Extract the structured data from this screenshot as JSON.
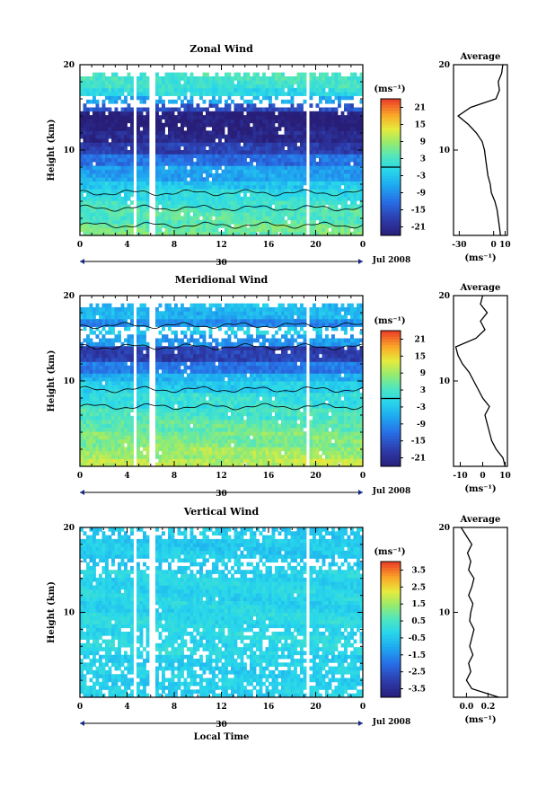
{
  "chart_data": [
    {
      "type": "heatmap",
      "title": "Zonal Wind",
      "ylabel": "Height (km)",
      "y_ticks": [
        "10",
        "20"
      ],
      "x_ticks": [
        "0",
        "4",
        "8",
        "12",
        "16",
        "20",
        "0"
      ],
      "date_day": "30",
      "date_month_label": "Jul 2008",
      "ylim": [
        0,
        20
      ],
      "xlim": [
        0,
        24
      ],
      "colorbar": {
        "unit": "(ms⁻¹)",
        "ticks": [
          "21",
          "15",
          "9",
          "3",
          "-3",
          "-9",
          "-15",
          "-21"
        ],
        "range": [
          -24,
          24
        ]
      },
      "data_gaps_hours": [
        4.6,
        6.1,
        19.3
      ],
      "bands": [
        {
          "from": 0,
          "to": 1.5,
          "value": 6
        },
        {
          "from": 1.5,
          "to": 3.0,
          "value": 4
        },
        {
          "from": 3.0,
          "to": 4.0,
          "value": 2
        },
        {
          "from": 4.0,
          "to": 5.5,
          "value": 0
        },
        {
          "from": 5.5,
          "to": 6.5,
          "value": -3
        },
        {
          "from": 6.5,
          "to": 8.0,
          "value": -7
        },
        {
          "from": 8.0,
          "to": 9.5,
          "value": -12
        },
        {
          "from": 9.5,
          "to": 11.0,
          "value": -18
        },
        {
          "from": 11.0,
          "to": 12.5,
          "value": -22
        },
        {
          "from": 12.5,
          "to": 14.5,
          "value": -24
        },
        {
          "from": 14.5,
          "to": 15.5,
          "value": -16
        },
        {
          "from": 15.5,
          "to": 16.5,
          "value": -6
        },
        {
          "from": 16.5,
          "to": 17.3,
          "value": 0
        },
        {
          "from": 17.3,
          "to": 18.0,
          "value": 2
        },
        {
          "from": 18.0,
          "to": 19.0,
          "value": 3
        }
      ],
      "contour_heights_km": [
        1.2,
        3.2,
        5.0
      ],
      "average_profile": {
        "title": "Average",
        "xlabel": "(ms⁻¹)",
        "x_ticks": [
          "-30",
          "0",
          "10"
        ],
        "xlim": [
          -35,
          12
        ],
        "height_km": [
          0,
          1,
          2,
          3,
          4,
          5,
          6,
          7,
          8,
          9,
          10,
          11,
          12,
          13,
          14,
          15,
          16,
          17,
          18,
          19,
          20
        ],
        "value": [
          6,
          5,
          4,
          3,
          1,
          -2,
          -3,
          -5,
          -6,
          -7,
          -8,
          -10,
          -15,
          -22,
          -31,
          -20,
          2,
          5,
          4,
          7,
          8
        ]
      }
    },
    {
      "type": "heatmap",
      "title": "Meridional Wind",
      "ylabel": "Height (km)",
      "y_ticks": [
        "10",
        "20"
      ],
      "x_ticks": [
        "0",
        "4",
        "8",
        "12",
        "16",
        "20",
        "0"
      ],
      "date_day": "30",
      "date_month_label": "Jul 2008",
      "ylim": [
        0,
        20
      ],
      "xlim": [
        0,
        24
      ],
      "colorbar": {
        "unit": "(ms⁻¹)",
        "ticks": [
          "21",
          "15",
          "9",
          "3",
          "-3",
          "-9",
          "-15",
          "-21"
        ],
        "range": [
          -24,
          24
        ]
      },
      "data_gaps_hours": [
        4.6,
        6.1,
        19.3
      ],
      "bands": [
        {
          "from": 0,
          "to": 1.0,
          "value": 11
        },
        {
          "from": 1.0,
          "to": 2.5,
          "value": 9
        },
        {
          "from": 2.5,
          "to": 4.0,
          "value": 7
        },
        {
          "from": 4.0,
          "to": 5.5,
          "value": 5
        },
        {
          "from": 5.5,
          "to": 7.0,
          "value": 3
        },
        {
          "from": 7.0,
          "to": 8.5,
          "value": 1
        },
        {
          "from": 8.5,
          "to": 10.0,
          "value": -2
        },
        {
          "from": 10.0,
          "to": 11.0,
          "value": -5
        },
        {
          "from": 11.0,
          "to": 12.5,
          "value": -11
        },
        {
          "from": 12.5,
          "to": 14.0,
          "value": -18
        },
        {
          "from": 14.0,
          "to": 15.5,
          "value": -8
        },
        {
          "from": 15.5,
          "to": 16.5,
          "value": -2
        },
        {
          "from": 16.5,
          "to": 17.5,
          "value": -9
        },
        {
          "from": 17.5,
          "to": 18.5,
          "value": -5
        },
        {
          "from": 18.5,
          "to": 19.3,
          "value": -4
        }
      ],
      "contour_heights_km": [
        7.0,
        9.0,
        14.0,
        16.5
      ],
      "average_profile": {
        "title": "Average",
        "xlabel": "(ms⁻¹)",
        "x_ticks": [
          "-10",
          "0",
          "10"
        ],
        "xlim": [
          -13,
          11
        ],
        "height_km": [
          0,
          1,
          2,
          3,
          4,
          5,
          6,
          7,
          8,
          9,
          10,
          11,
          12,
          13,
          14,
          15,
          16,
          17,
          18,
          19,
          20
        ],
        "value": [
          10,
          9,
          6,
          4,
          3,
          2,
          1,
          3,
          0,
          -2,
          -4,
          -6,
          -9,
          -11,
          -12,
          -3,
          1,
          -1,
          2,
          -1,
          0
        ]
      }
    },
    {
      "type": "heatmap",
      "title": "Vertical Wind",
      "ylabel": "Height (km)",
      "y_ticks": [
        "10",
        "20"
      ],
      "x_ticks": [
        "0",
        "4",
        "8",
        "12",
        "16",
        "20",
        "0"
      ],
      "date_day": "30",
      "date_month_label": "Jul 2008",
      "xlabel": "Local Time",
      "ylim": [
        0,
        20
      ],
      "xlim": [
        0,
        24
      ],
      "colorbar": {
        "unit": "(ms⁻¹)",
        "ticks": [
          "3.5",
          "2.5",
          "1.5",
          "0.5",
          "-0.5",
          "-1.5",
          "-2.5",
          "-3.5"
        ],
        "range": [
          -4,
          4
        ]
      },
      "data_gaps_hours": [
        4.6,
        6.1,
        19.3
      ],
      "bands": [
        {
          "from": 0,
          "to": 5,
          "value": -0.3
        },
        {
          "from": 5,
          "to": 10,
          "value": -0.1
        },
        {
          "from": 10,
          "to": 15,
          "value": -0.2
        },
        {
          "from": 15,
          "to": 20,
          "value": -0.4
        }
      ],
      "average_profile": {
        "title": "Average",
        "xlabel": "(ms⁻¹)",
        "x_ticks": [
          "0.0",
          "0.2"
        ],
        "xlim": [
          -0.12,
          0.38
        ],
        "height_km": [
          0,
          1,
          2,
          3,
          4,
          5,
          6,
          7,
          8,
          9,
          10,
          11,
          12,
          13,
          14,
          15,
          16,
          17,
          18,
          19,
          20
        ],
        "value": [
          0.3,
          0.05,
          0.0,
          0.04,
          0.02,
          0.06,
          0.03,
          0.05,
          0.07,
          0.03,
          0.04,
          0.06,
          0.02,
          0.05,
          0.07,
          0.02,
          0.04,
          0.01,
          0.05,
          0.0,
          -0.05
        ]
      }
    }
  ]
}
